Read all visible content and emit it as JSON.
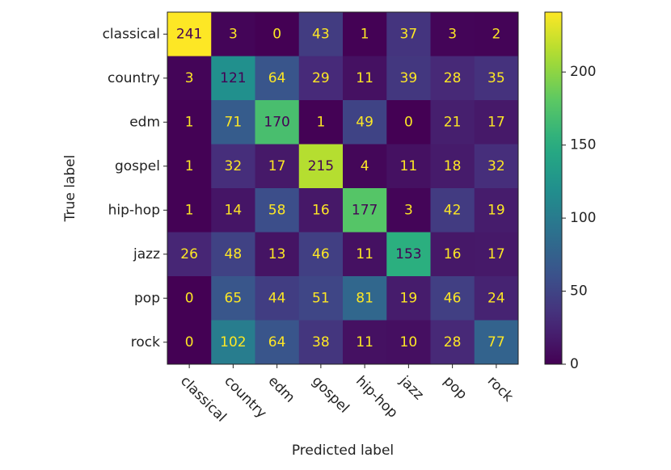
{
  "chart_data": {
    "type": "heatmap",
    "title": "",
    "xlabel": "Predicted label",
    "ylabel": "True label",
    "x_categories": [
      "classical",
      "country",
      "edm",
      "gospel",
      "hip-hop",
      "jazz",
      "pop",
      "rock"
    ],
    "y_categories": [
      "classical",
      "country",
      "edm",
      "gospel",
      "hip-hop",
      "jazz",
      "pop",
      "rock"
    ],
    "values": [
      [
        241,
        3,
        0,
        43,
        1,
        37,
        3,
        2
      ],
      [
        3,
        121,
        64,
        29,
        11,
        39,
        28,
        35
      ],
      [
        1,
        71,
        170,
        1,
        49,
        0,
        21,
        17
      ],
      [
        1,
        32,
        17,
        215,
        4,
        11,
        18,
        32
      ],
      [
        1,
        14,
        58,
        16,
        177,
        3,
        42,
        19
      ],
      [
        26,
        48,
        13,
        46,
        11,
        153,
        16,
        17
      ],
      [
        0,
        65,
        44,
        51,
        81,
        19,
        46,
        24
      ],
      [
        0,
        102,
        64,
        38,
        11,
        10,
        28,
        77
      ]
    ],
    "colorbar": {
      "min": 0,
      "max": 241,
      "ticks": [
        0,
        50,
        100,
        150,
        200
      ]
    },
    "colormap": "viridis",
    "text_colors": {
      "light": "#fde725",
      "dark": "#440154"
    },
    "x_tick_rotation": 45
  }
}
